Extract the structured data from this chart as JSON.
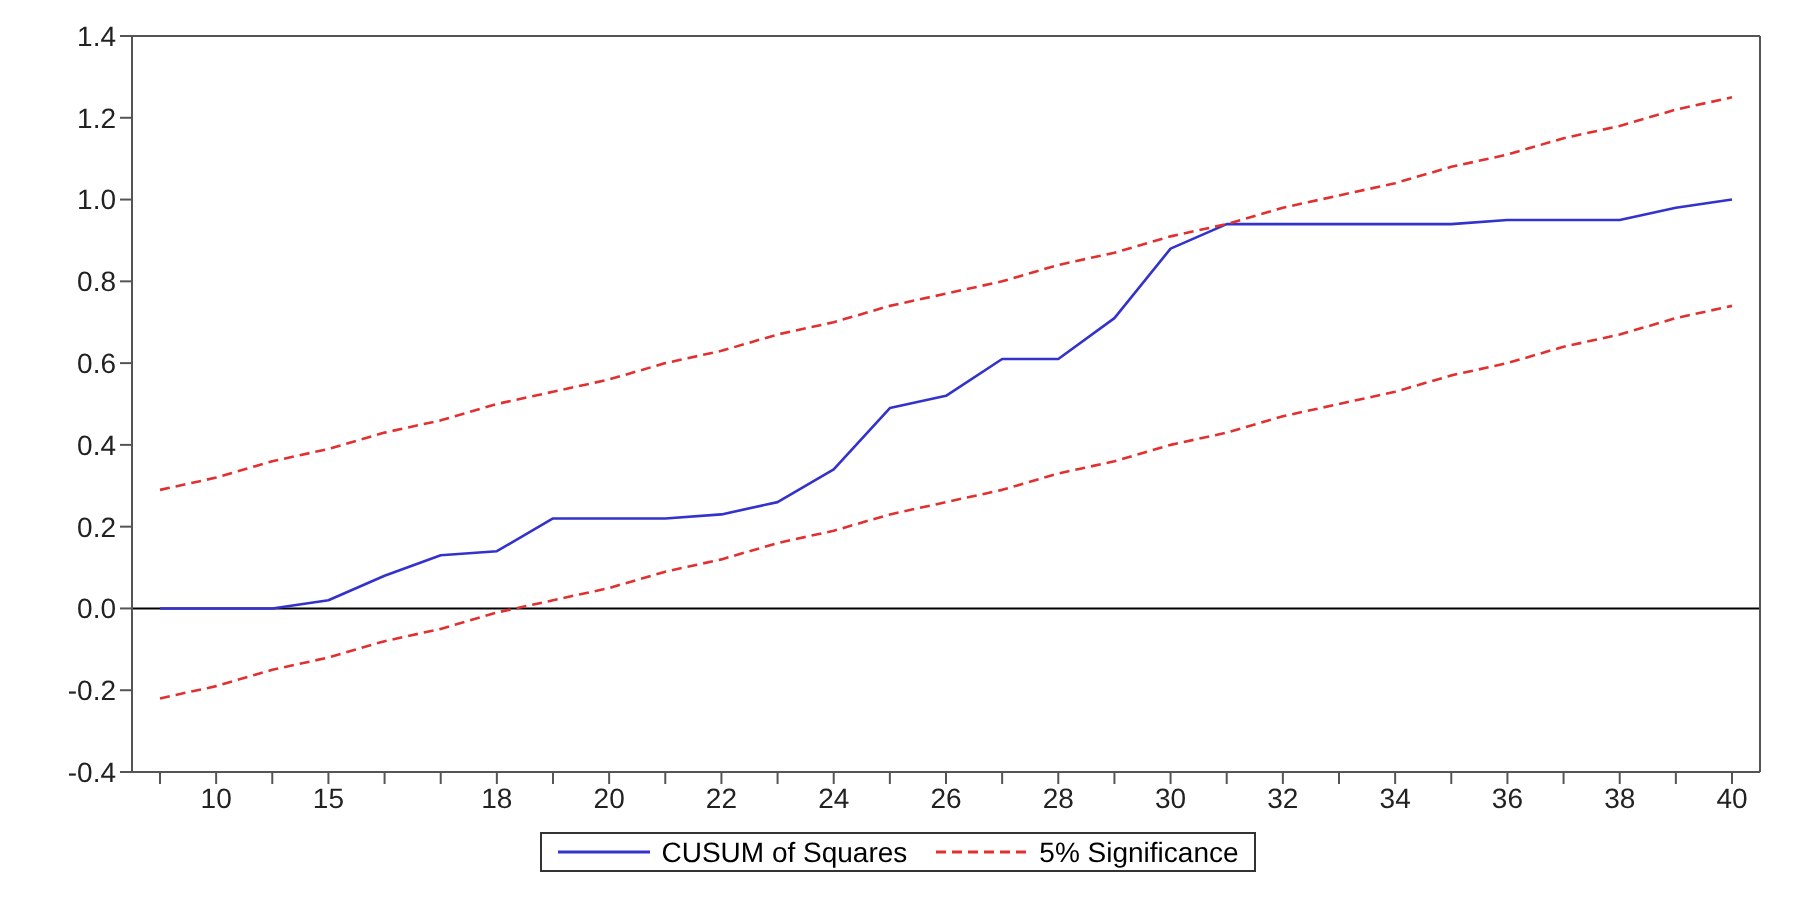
{
  "chart_data": {
    "type": "line",
    "categories": [
      null,
      "10",
      null,
      "15",
      null,
      null,
      "18",
      null,
      "20",
      null,
      "22",
      null,
      "24",
      null,
      "26",
      null,
      "28",
      null,
      "30",
      null,
      "32",
      null,
      "34",
      null,
      "36",
      null,
      "38",
      null,
      "40"
    ],
    "series": [
      {
        "name": "CUSUM of Squares",
        "color": "#3333cc",
        "line_style": "solid",
        "values": [
          0,
          0,
          0,
          0.02,
          0.08,
          0.13,
          0.14,
          0.22,
          0.22,
          0.22,
          0.23,
          0.26,
          0.34,
          0.49,
          0.52,
          0.61,
          0.61,
          0.71,
          0.88,
          0.94,
          0.94,
          0.94,
          0.94,
          0.94,
          0.95,
          0.95,
          0.95,
          0.98,
          1.0
        ]
      },
      {
        "name": "5% Significance",
        "color": "#e03030",
        "line_style": "dashed",
        "values": [
          0.29,
          0.32,
          0.36,
          0.39,
          0.43,
          0.46,
          0.5,
          0.53,
          0.56,
          0.6,
          0.63,
          0.67,
          0.7,
          0.74,
          0.77,
          0.8,
          0.84,
          0.87,
          0.91,
          0.94,
          0.98,
          1.01,
          1.04,
          1.08,
          1.11,
          1.15,
          1.18,
          1.22,
          1.25
        ]
      },
      {
        "color": "#e03030",
        "line_style": "dashed",
        "values": [
          -0.22,
          -0.19,
          -0.15,
          -0.12,
          -0.08,
          -0.05,
          -0.01,
          0.02,
          0.05,
          0.09,
          0.12,
          0.16,
          0.19,
          0.23,
          0.26,
          0.29,
          0.33,
          0.36,
          0.4,
          0.43,
          0.47,
          0.5,
          0.53,
          0.57,
          0.6,
          0.64,
          0.67,
          0.71,
          0.74
        ]
      }
    ],
    "ylim": [
      -0.4,
      1.4
    ],
    "yticks": [
      {
        "value": -0.4,
        "label": "-0.4"
      },
      {
        "value": -0.2,
        "label": "-0.2"
      },
      {
        "value": 0,
        "label": "0.0"
      },
      {
        "value": 0.2,
        "label": "0.2"
      },
      {
        "value": 0.4,
        "label": "0.4"
      },
      {
        "value": 0.6,
        "label": "0.6"
      },
      {
        "value": 0.8,
        "label": "0.8"
      },
      {
        "value": 1,
        "label": "1.0"
      },
      {
        "value": 1.2,
        "label": "1.2"
      },
      {
        "value": 1.4,
        "label": "1.4"
      }
    ],
    "ref_lines": [
      {
        "axis": "y",
        "value": 0,
        "color": "#000000"
      }
    ],
    "grid": false,
    "legend": "bottom",
    "marker": "none"
  }
}
